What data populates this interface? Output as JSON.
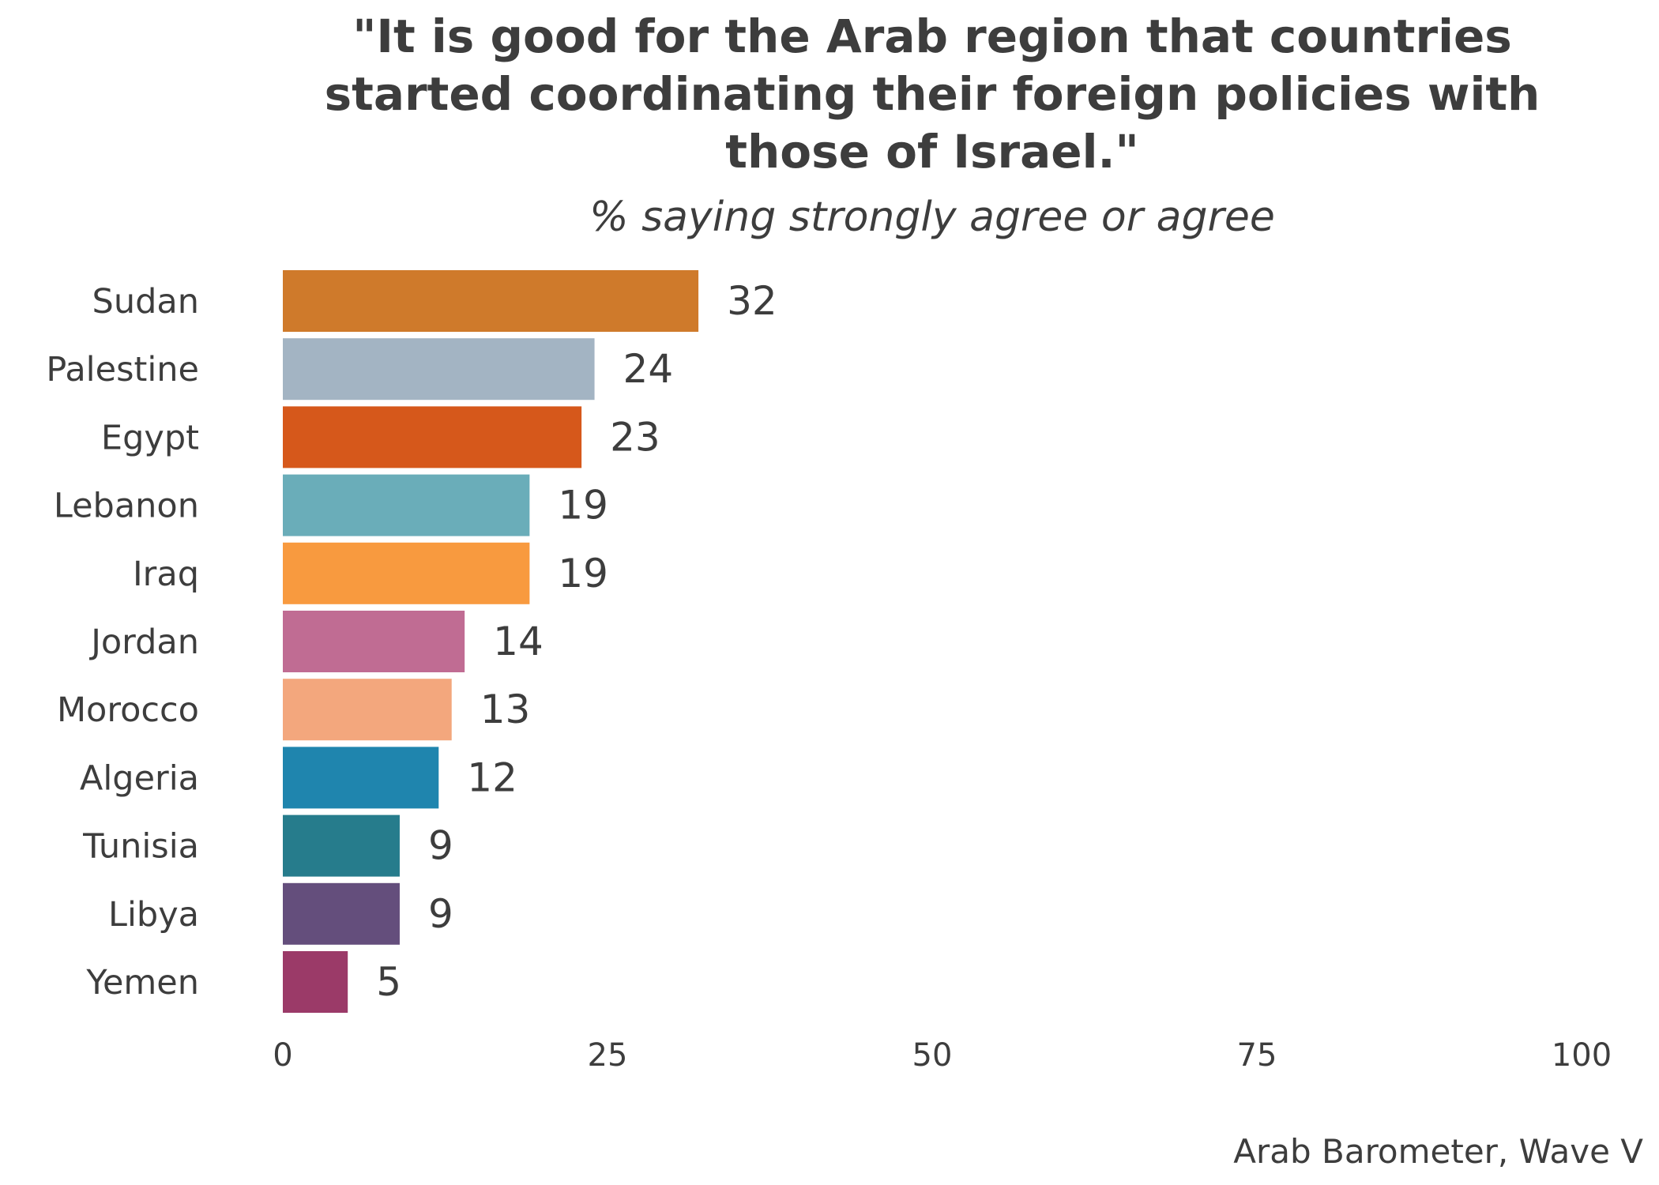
{
  "chart_data": {
    "type": "bar",
    "orientation": "horizontal",
    "title_lines": [
      "\"It is good for the Arab region that countries",
      "started coordinating their foreign policies with",
      "those of Israel.\""
    ],
    "subtitle": "% saying strongly agree or agree",
    "categories": [
      "Sudan",
      "Palestine",
      "Egypt",
      "Lebanon",
      "Iraq",
      "Jordan",
      "Morocco",
      "Algeria",
      "Tunisia",
      "Libya",
      "Yemen"
    ],
    "values": [
      32,
      24,
      23,
      19,
      19,
      14,
      13,
      12,
      9,
      9,
      5
    ],
    "colors": [
      "#CF7A2B",
      "#A3B4C3",
      "#D6581B",
      "#6AADB9",
      "#F89A3F",
      "#C06C93",
      "#F3A77D",
      "#1F85AE",
      "#267C8C",
      "#644E7C",
      "#9B3A68"
    ],
    "xlim": [
      0,
      100
    ],
    "xticks": [
      0,
      25,
      50,
      75,
      100
    ],
    "xlabel": "",
    "ylabel": "",
    "grid": false,
    "legend": "none",
    "source": "Arab Barometer, Wave V"
  }
}
